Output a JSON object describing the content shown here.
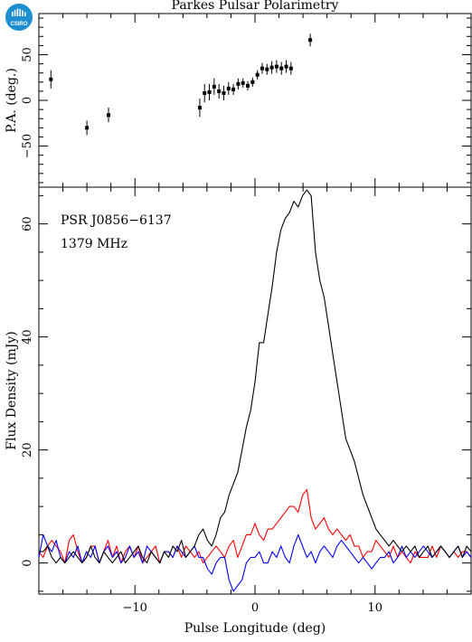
{
  "chart_data": {
    "type": "line",
    "title": "Parkes Pulsar Polarimetry",
    "logo_text": "CSIRO",
    "annotations": [
      "PSR J0856−6137",
      "1379 MHz"
    ],
    "xlabel": "Pulse Longitude (deg)",
    "xlim": [
      -18,
      18
    ],
    "x_ticks": [
      -10,
      0,
      10
    ],
    "x_tick_labels": [
      "−10",
      "0",
      "10"
    ],
    "pa_panel": {
      "ylabel": "P.A. (deg.)",
      "ylim": [
        -95,
        95
      ],
      "y_ticks": [
        -50,
        0,
        50
      ],
      "y_tick_labels": [
        "−50",
        "0",
        "50"
      ],
      "points": [
        {
          "x": -17.0,
          "pa": 23,
          "err": 10
        },
        {
          "x": -14.0,
          "pa": -30,
          "err": 8
        },
        {
          "x": -12.2,
          "pa": -16,
          "err": 8
        },
        {
          "x": -4.6,
          "pa": -8,
          "err": 10
        },
        {
          "x": -4.2,
          "pa": 8,
          "err": 10
        },
        {
          "x": -3.8,
          "pa": 9,
          "err": 9
        },
        {
          "x": -3.4,
          "pa": 15,
          "err": 9
        },
        {
          "x": -3.0,
          "pa": 10,
          "err": 8
        },
        {
          "x": -2.6,
          "pa": 8,
          "err": 8
        },
        {
          "x": -2.2,
          "pa": 13,
          "err": 7
        },
        {
          "x": -1.8,
          "pa": 12,
          "err": 6
        },
        {
          "x": -1.4,
          "pa": 18,
          "err": 6
        },
        {
          "x": -1.0,
          "pa": 19,
          "err": 5
        },
        {
          "x": -0.6,
          "pa": 16,
          "err": 5
        },
        {
          "x": -0.2,
          "pa": 20,
          "err": 5
        },
        {
          "x": 0.2,
          "pa": 28,
          "err": 5
        },
        {
          "x": 0.6,
          "pa": 35,
          "err": 6
        },
        {
          "x": 1.0,
          "pa": 34,
          "err": 6
        },
        {
          "x": 1.4,
          "pa": 36,
          "err": 7
        },
        {
          "x": 1.8,
          "pa": 37,
          "err": 7
        },
        {
          "x": 2.2,
          "pa": 35,
          "err": 7
        },
        {
          "x": 2.6,
          "pa": 37,
          "err": 7
        },
        {
          "x": 3.0,
          "pa": 35,
          "err": 7
        },
        {
          "x": 4.6,
          "pa": 66,
          "err": 7
        }
      ]
    },
    "profile_panel": {
      "ylabel": "Flux Density (mJy)",
      "ylim": [
        -5.5,
        66.5
      ],
      "y_ticks": [
        0,
        20,
        40,
        60
      ],
      "y_tick_labels": [
        "0",
        "20",
        "40",
        "60"
      ],
      "x_start": -18,
      "x_step": 0.36,
      "series": [
        {
          "color": "#000000",
          "values": [
            2,
            2,
            3,
            1,
            0,
            1,
            0,
            1,
            2,
            1,
            0,
            1,
            3,
            1,
            0,
            2,
            1,
            0,
            1,
            2,
            0,
            1,
            2,
            3,
            1,
            0,
            2,
            1,
            0,
            2,
            1,
            3,
            2,
            4,
            1,
            2,
            3,
            5,
            6,
            4,
            3,
            5,
            8,
            9,
            12,
            14,
            16,
            20,
            24,
            27,
            32,
            39,
            39,
            44,
            49,
            55,
            59,
            61,
            62,
            64,
            63,
            65,
            66,
            65,
            55,
            50,
            47,
            42,
            37,
            32,
            27,
            22,
            20,
            18,
            15,
            12,
            10,
            8,
            6,
            5,
            4,
            3,
            4,
            3,
            2,
            3,
            2,
            3,
            1,
            2,
            3,
            1,
            2,
            3,
            2,
            1,
            2,
            3,
            1,
            3,
            2
          ]
        },
        {
          "color": "#ff0000",
          "values": [
            2,
            1,
            3,
            4,
            3,
            2,
            0,
            4,
            5,
            2,
            0,
            1,
            3,
            3,
            0,
            2,
            4,
            1,
            3,
            0,
            2,
            3,
            1,
            3,
            0,
            1,
            2,
            3,
            0,
            2,
            2,
            1,
            3,
            1,
            3,
            2,
            1,
            2,
            0,
            1,
            2,
            3,
            2,
            1,
            3,
            4,
            1,
            3,
            5,
            5,
            7,
            5,
            4,
            6,
            6,
            7,
            8,
            9,
            10,
            10,
            9,
            12,
            13,
            8,
            6,
            7,
            8,
            6,
            5,
            6,
            5,
            4,
            5,
            3,
            3,
            1,
            2,
            2,
            4,
            3,
            2,
            1,
            3,
            1,
            2,
            1,
            0,
            2,
            1,
            1,
            1,
            3,
            1,
            3,
            2,
            1,
            2,
            1,
            2,
            2,
            1
          ]
        },
        {
          "color": "#0000ff",
          "values": [
            1,
            5,
            3,
            2,
            4,
            1,
            0,
            2,
            1,
            3,
            0,
            2,
            1,
            3,
            0,
            2,
            3,
            1,
            2,
            0,
            1,
            3,
            1,
            2,
            0,
            3,
            2,
            1,
            0,
            2,
            2,
            1,
            3,
            2,
            1,
            2,
            3,
            1,
            1,
            -1,
            -2,
            0,
            1,
            1,
            -3,
            -5,
            -4,
            -3,
            0,
            1,
            1,
            2,
            0,
            0,
            2,
            1,
            3,
            1,
            0,
            3,
            5,
            3,
            1,
            2,
            0,
            2,
            3,
            2,
            1,
            3,
            4,
            3,
            2,
            1,
            0,
            1,
            0,
            -1,
            0,
            1,
            1,
            2,
            0,
            1,
            3,
            1,
            2,
            1,
            2,
            3,
            2,
            1,
            2,
            3,
            2,
            1,
            2,
            3,
            1,
            2,
            1
          ]
        }
      ]
    }
  }
}
